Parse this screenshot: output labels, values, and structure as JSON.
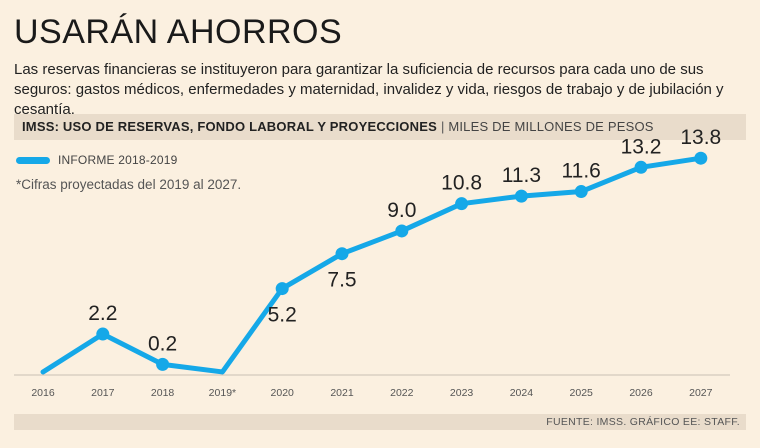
{
  "header": {
    "title": "USARÁN AHORROS",
    "subtitle": "Las reservas financieras se instituyeron para garantizar la suficiencia de recursos para cada uno de sus seguros: gastos médicos, enfermedades y maternidad, invalidez y vida, riesgos de trabajo y de jubilación y cesantía."
  },
  "band": {
    "bold": "IMSS: USO DE RESERVAS, FONDO LABORAL Y PROYECCIONES",
    "separator": "|",
    "unit": "MILES DE MILLONES DE PESOS"
  },
  "legend": {
    "label": "INFORME 2018-2019",
    "color": "#15a8e8"
  },
  "note": "*Cifras proyectadas del 2019 al 2027.",
  "footer": {
    "source": "FUENTE: IMSS. GRÁFICO EE: STAFF."
  },
  "chart_data": {
    "type": "line",
    "categories": [
      "2016",
      "2017",
      "2018",
      "2019*",
      "2020",
      "2021",
      "2022",
      "2023",
      "2024",
      "2025",
      "2026",
      "2027"
    ],
    "series": [
      {
        "name": "INFORME 2018-2019",
        "values": [
          -0.3,
          2.2,
          0.2,
          -0.3,
          5.2,
          7.5,
          9.0,
          10.8,
          11.3,
          11.6,
          13.2,
          13.8
        ],
        "labels": [
          "",
          "2.2",
          "0.2",
          "",
          "5.2",
          "7.5",
          "9.0",
          "10.8",
          "11.3",
          "11.6",
          "13.2",
          "13.8"
        ],
        "label_side": [
          "",
          "above",
          "above",
          "",
          "below",
          "below",
          "above",
          "above",
          "above",
          "above",
          "above",
          "above"
        ]
      }
    ],
    "ylim": [
      -0.6,
      15
    ],
    "line_color": "#15a8e8",
    "grid": false
  }
}
